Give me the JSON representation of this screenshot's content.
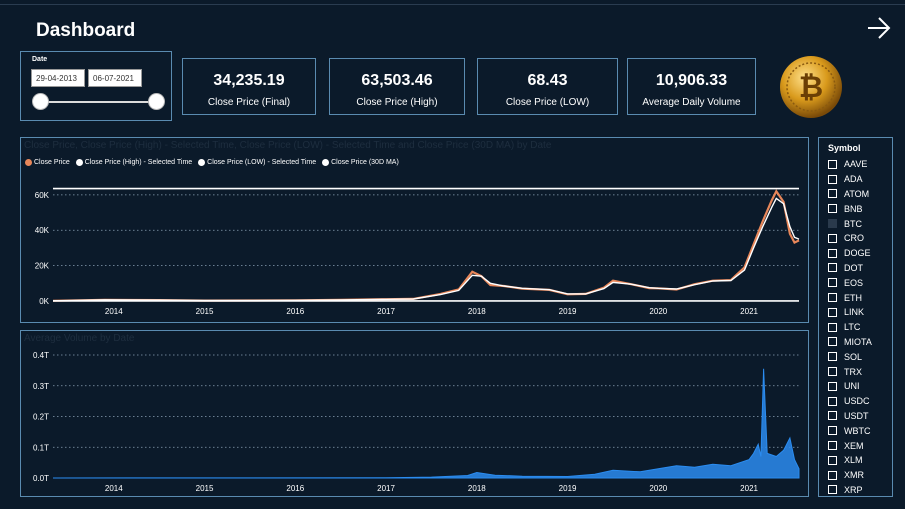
{
  "header": {
    "title": "Dashboard"
  },
  "date_filter": {
    "label": "Date",
    "start": "29-04-2013",
    "end": "06-07-2021"
  },
  "kpis": [
    {
      "value": "34,235.19",
      "caption": "Close Price (Final)"
    },
    {
      "value": "63,503.46",
      "caption": "Close Price (High)"
    },
    {
      "value": "68.43",
      "caption": "Close Price (LOW)"
    },
    {
      "value": "10,906.33",
      "caption": "Average Daily Volume"
    }
  ],
  "price_panel": {
    "title": "Close Price, Close Price (High) - Selected Time, Close Price (LOW) - Selected Time and Close Price (30D MA) by Date",
    "legend": [
      {
        "name": "Close Price",
        "color": "#e8875a"
      },
      {
        "name": "Close Price (High) - Selected Time",
        "color": "#ffffff"
      },
      {
        "name": "Close Price (LOW) - Selected Time",
        "color": "#ffffff"
      },
      {
        "name": "Close Price (30D MA)",
        "color": "#ffffff"
      }
    ]
  },
  "volume_panel": {
    "title": "Average Volume by Date"
  },
  "slicer": {
    "title": "Symbol",
    "items": [
      "AAVE",
      "ADA",
      "ATOM",
      "BNB",
      "BTC",
      "CRO",
      "DOGE",
      "DOT",
      "EOS",
      "ETH",
      "LINK",
      "LTC",
      "MIOTA",
      "SOL",
      "TRX",
      "UNI",
      "USDC",
      "USDT",
      "WBTC",
      "XEM",
      "XLM",
      "XMR",
      "XRP"
    ],
    "partial_item": "BTC"
  },
  "chart_data": [
    {
      "type": "line",
      "x_tick_labels": [
        "2014",
        "2015",
        "2016",
        "2017",
        "2018",
        "2019",
        "2020",
        "2021"
      ],
      "y_tick_labels": [
        "0K",
        "20K",
        "40K",
        "60K"
      ],
      "ylim": [
        0,
        65000
      ],
      "xlim": [
        2013.33,
        2021.55
      ],
      "series": [
        {
          "name": "Close Price",
          "color": "#e8875a",
          "x": [
            2013.33,
            2013.9,
            2014.5,
            2015.0,
            2015.5,
            2016.0,
            2016.5,
            2017.0,
            2017.3,
            2017.6,
            2017.8,
            2017.95,
            2018.05,
            2018.15,
            2018.3,
            2018.5,
            2018.8,
            2019.0,
            2019.2,
            2019.4,
            2019.5,
            2019.7,
            2019.9,
            2020.0,
            2020.2,
            2020.4,
            2020.6,
            2020.8,
            2020.95,
            2021.05,
            2021.15,
            2021.25,
            2021.3,
            2021.38,
            2021.45,
            2021.5,
            2021.55
          ],
          "y": [
            100,
            700,
            500,
            250,
            300,
            400,
            650,
            1000,
            1200,
            4000,
            6500,
            16500,
            14000,
            9000,
            8500,
            7000,
            6300,
            3800,
            4000,
            7500,
            11500,
            9500,
            7300,
            7200,
            6500,
            9500,
            11500,
            11800,
            19000,
            32000,
            45000,
            57000,
            62000,
            56000,
            38000,
            33000,
            34235
          ]
        },
        {
          "name": "Close Price (High) - Selected Time",
          "color": "#ffffff",
          "x": [
            2013.33,
            2021.55
          ],
          "y": [
            63503,
            63503
          ]
        },
        {
          "name": "Close Price (LOW) - Selected Time",
          "color": "#ffffff",
          "x": [
            2013.33,
            2021.55
          ],
          "y": [
            68,
            68
          ]
        },
        {
          "name": "Close Price (30D MA)",
          "color": "#ffffff",
          "x": [
            2013.33,
            2013.9,
            2014.5,
            2015.0,
            2015.5,
            2016.0,
            2016.5,
            2017.0,
            2017.3,
            2017.6,
            2017.8,
            2017.95,
            2018.05,
            2018.15,
            2018.3,
            2018.5,
            2018.8,
            2019.0,
            2019.2,
            2019.4,
            2019.5,
            2019.7,
            2019.9,
            2020.0,
            2020.2,
            2020.4,
            2020.6,
            2020.8,
            2020.95,
            2021.05,
            2021.15,
            2021.25,
            2021.3,
            2021.38,
            2021.45,
            2021.5,
            2021.55
          ],
          "y": [
            100,
            650,
            500,
            260,
            300,
            400,
            640,
            950,
            1150,
            3600,
            6000,
            14500,
            14000,
            10000,
            8500,
            7200,
            6400,
            4000,
            4000,
            7000,
            10500,
            9500,
            7500,
            7200,
            6800,
            9200,
            11300,
            11600,
            17500,
            30000,
            42000,
            53000,
            58000,
            55000,
            42000,
            36000,
            35000
          ]
        }
      ]
    },
    {
      "type": "area",
      "x_tick_labels": [
        "2014",
        "2015",
        "2016",
        "2017",
        "2018",
        "2019",
        "2020",
        "2021"
      ],
      "y_tick_labels": [
        "0.0T",
        "0.1T",
        "0.2T",
        "0.3T",
        "0.4T"
      ],
      "ylim": [
        0,
        0.4
      ],
      "xlim": [
        2013.33,
        2021.55
      ],
      "series": [
        {
          "name": "Average Volume",
          "color": "#2b8cf0",
          "x": [
            2013.33,
            2017.0,
            2017.5,
            2017.9,
            2018.0,
            2018.2,
            2018.5,
            2019.0,
            2019.3,
            2019.5,
            2019.8,
            2020.0,
            2020.2,
            2020.4,
            2020.6,
            2020.8,
            2021.0,
            2021.05,
            2021.1,
            2021.13,
            2021.16,
            2021.2,
            2021.3,
            2021.38,
            2021.45,
            2021.5,
            2021.55
          ],
          "y": [
            0.0,
            0.001,
            0.003,
            0.008,
            0.018,
            0.009,
            0.006,
            0.005,
            0.012,
            0.025,
            0.02,
            0.03,
            0.04,
            0.035,
            0.045,
            0.04,
            0.06,
            0.08,
            0.11,
            0.07,
            0.355,
            0.08,
            0.07,
            0.09,
            0.13,
            0.06,
            0.03
          ]
        }
      ]
    }
  ]
}
